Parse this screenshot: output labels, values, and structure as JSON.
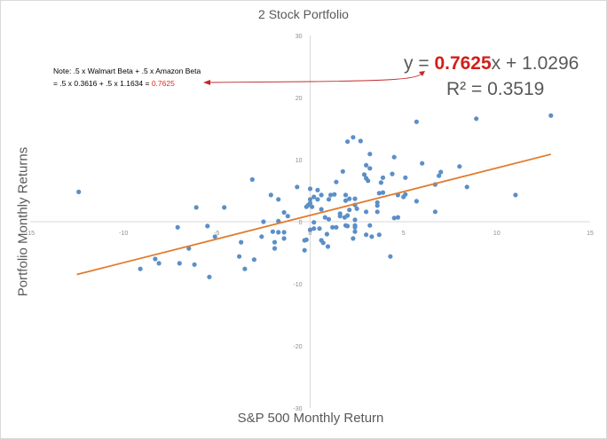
{
  "chart_data": {
    "type": "scatter",
    "title": "2 Stock Portfolio",
    "xlabel": "S&P 500 Monthly Return",
    "ylabel": "Portfolio Monthly Returns",
    "xlim": [
      -15,
      15
    ],
    "ylim": [
      -30,
      30
    ],
    "x_ticks": [
      -15,
      -10,
      -5,
      0,
      5,
      10,
      15
    ],
    "y_ticks": [
      30,
      20,
      10,
      0,
      -10,
      -20,
      -30
    ],
    "grid": false,
    "legend": null,
    "marker_color": "#5b8fc7",
    "trendline": {
      "type": "linear",
      "color": "#e07b2e",
      "slope": 0.7625,
      "intercept": 1.0296,
      "r_squared": 0.3519,
      "x_range": [
        -12.5,
        12.9
      ]
    },
    "annotations": {
      "equation_prefix": "y = ",
      "equation_slope": "0.7625",
      "equation_suffix": "x + 1.0296",
      "r_squared_label": "R² = 0.3519",
      "note_line1": "Note: .5 x Walmart Beta + .5 x Amazon Beta",
      "note_line2_prefix": "= .5 x 0.3616 + .5 x 1.1634 = ",
      "note_line2_value": "0.7625",
      "arrow_color": "#c0282a"
    },
    "points": [
      [
        -12.4,
        4.8
      ],
      [
        -9.1,
        -7.6
      ],
      [
        -8.3,
        -6.0
      ],
      [
        -8.1,
        -6.7
      ],
      [
        -7.1,
        -0.9
      ],
      [
        -7.0,
        -6.7
      ],
      [
        -6.5,
        -4.3
      ],
      [
        -6.2,
        -6.9
      ],
      [
        -6.1,
        2.3
      ],
      [
        -5.5,
        -0.7
      ],
      [
        -5.4,
        -8.9
      ],
      [
        -5.1,
        -2.4
      ],
      [
        -4.6,
        2.3
      ],
      [
        -3.8,
        -5.6
      ],
      [
        -3.7,
        -3.3
      ],
      [
        -3.5,
        -7.6
      ],
      [
        -3.1,
        6.8
      ],
      [
        -3.0,
        -6.1
      ],
      [
        -2.6,
        -2.4
      ],
      [
        -2.5,
        0.0
      ],
      [
        -2.1,
        4.3
      ],
      [
        -2.0,
        -1.6
      ],
      [
        -1.9,
        -3.3
      ],
      [
        -1.9,
        -4.3
      ],
      [
        -1.7,
        3.6
      ],
      [
        -1.7,
        0.1
      ],
      [
        -1.7,
        -1.7
      ],
      [
        -1.4,
        1.5
      ],
      [
        -1.4,
        -1.7
      ],
      [
        -1.4,
        -2.7
      ],
      [
        -1.2,
        0.9
      ],
      [
        -0.7,
        5.6
      ],
      [
        -0.3,
        -3.0
      ],
      [
        -0.3,
        -4.6
      ],
      [
        -0.2,
        -2.9
      ],
      [
        -0.2,
        2.4
      ],
      [
        0.0,
        5.3
      ],
      [
        0.0,
        3.6
      ],
      [
        -0.1,
        2.7
      ],
      [
        0.0,
        3.0
      ],
      [
        0.0,
        -1.3
      ],
      [
        0.1,
        2.4
      ],
      [
        0.2,
        4.0
      ],
      [
        0.2,
        -0.1
      ],
      [
        0.2,
        -1.1
      ],
      [
        0.4,
        5.1
      ],
      [
        0.4,
        3.6
      ],
      [
        0.5,
        -1.1
      ],
      [
        0.6,
        4.3
      ],
      [
        0.6,
        2.0
      ],
      [
        0.6,
        -3.0
      ],
      [
        0.7,
        -3.4
      ],
      [
        0.8,
        0.7
      ],
      [
        0.9,
        -2.0
      ],
      [
        0.95,
        -4.0
      ],
      [
        1.0,
        3.6
      ],
      [
        1.0,
        0.4
      ],
      [
        1.1,
        4.3
      ],
      [
        1.2,
        -0.9
      ],
      [
        1.3,
        4.4
      ],
      [
        1.4,
        6.4
      ],
      [
        1.4,
        -0.9
      ],
      [
        1.6,
        1.3
      ],
      [
        1.6,
        0.9
      ],
      [
        1.75,
        8.1
      ],
      [
        1.85,
        0.7
      ],
      [
        1.9,
        4.3
      ],
      [
        1.9,
        3.4
      ],
      [
        1.9,
        -0.6
      ],
      [
        2.0,
        12.9
      ],
      [
        2.0,
        1.0
      ],
      [
        2.0,
        -0.7
      ],
      [
        2.1,
        3.7
      ],
      [
        2.1,
        1.9
      ],
      [
        2.3,
        13.6
      ],
      [
        2.3,
        -2.7
      ],
      [
        2.4,
        3.7
      ],
      [
        2.4,
        2.7
      ],
      [
        2.4,
        0.3
      ],
      [
        2.4,
        -0.6
      ],
      [
        2.4,
        -0.9
      ],
      [
        2.4,
        -1.6
      ],
      [
        2.5,
        2.1
      ],
      [
        2.7,
        13.0
      ],
      [
        2.9,
        7.6
      ],
      [
        3.0,
        9.1
      ],
      [
        3.0,
        7.0
      ],
      [
        3.0,
        1.6
      ],
      [
        3.0,
        -2.1
      ],
      [
        3.1,
        6.6
      ],
      [
        3.2,
        10.9
      ],
      [
        3.2,
        8.6
      ],
      [
        3.2,
        -0.6
      ],
      [
        3.3,
        -2.4
      ],
      [
        3.6,
        3.1
      ],
      [
        3.6,
        2.6
      ],
      [
        3.6,
        1.6
      ],
      [
        3.7,
        4.6
      ],
      [
        3.7,
        -2.1
      ],
      [
        3.8,
        6.3
      ],
      [
        3.9,
        7.1
      ],
      [
        3.9,
        4.7
      ],
      [
        4.3,
        -5.6
      ],
      [
        4.4,
        7.7
      ],
      [
        4.5,
        10.4
      ],
      [
        4.5,
        0.6
      ],
      [
        4.7,
        0.7
      ],
      [
        4.7,
        4.3
      ],
      [
        5.0,
        4.0
      ],
      [
        5.1,
        7.1
      ],
      [
        5.1,
        4.4
      ],
      [
        5.7,
        16.1
      ],
      [
        5.7,
        3.3
      ],
      [
        6.0,
        9.4
      ],
      [
        6.7,
        6.0
      ],
      [
        6.7,
        1.6
      ],
      [
        6.9,
        7.4
      ],
      [
        7.0,
        8.0
      ],
      [
        8.0,
        8.9
      ],
      [
        8.4,
        5.6
      ],
      [
        8.9,
        16.6
      ],
      [
        11.0,
        4.3
      ],
      [
        12.9,
        17.1
      ]
    ]
  }
}
